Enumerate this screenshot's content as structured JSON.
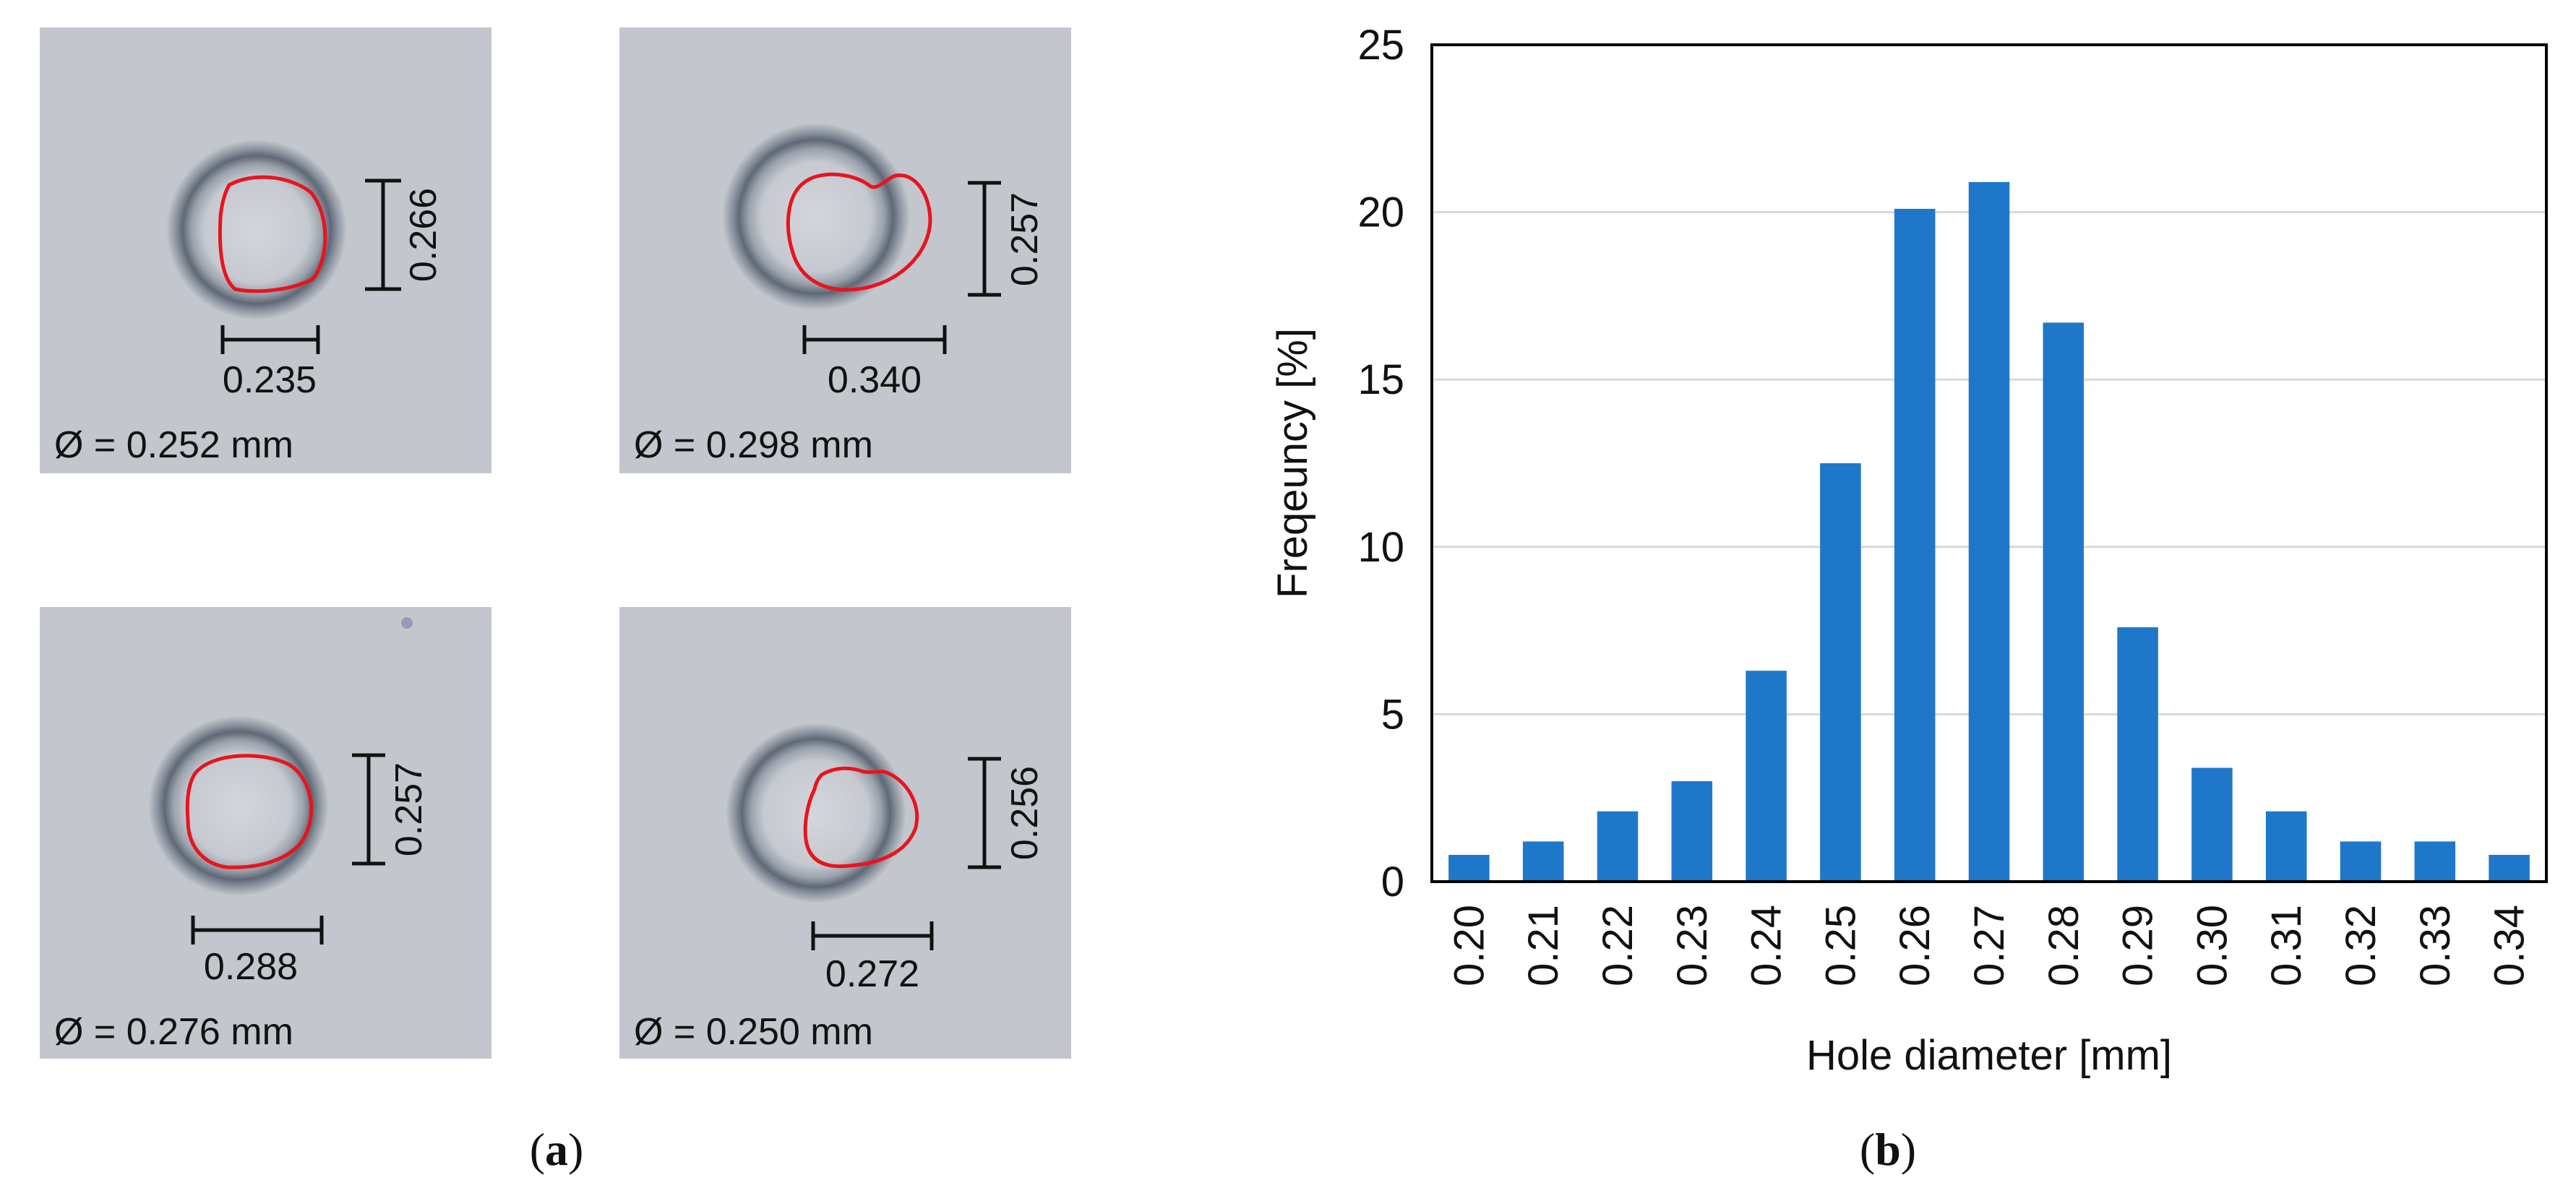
{
  "figure": {
    "panel_a_label": "(a)",
    "panel_b_label": "(b)",
    "panel_a_letter": "a",
    "panel_b_letter": "b"
  },
  "micrographs": [
    {
      "vertical_dim": "0.266",
      "horizontal_dim": "0.235",
      "diameter_text": "Ø = 0.252 mm"
    },
    {
      "vertical_dim": "0.257",
      "horizontal_dim": "0.340",
      "diameter_text": "Ø = 0.298 mm"
    },
    {
      "vertical_dim": "0.257",
      "horizontal_dim": "0.288",
      "diameter_text": "Ø = 0.276 mm"
    },
    {
      "vertical_dim": "0.256",
      "horizontal_dim": "0.272",
      "diameter_text": "Ø = 0.250 mm"
    }
  ],
  "colors": {
    "bar": "#1f77c9",
    "outline": "#e8141e",
    "photo_bg": "#c3c7cd",
    "grid": "#d9d9d9"
  },
  "chart_data": {
    "type": "bar",
    "categories": [
      "0.20",
      "0.21",
      "0.22",
      "0.23",
      "0.24",
      "0.25",
      "0.26",
      "0.27",
      "0.28",
      "0.29",
      "0.30",
      "0.31",
      "0.32",
      "0.33",
      "0.34"
    ],
    "values": [
      0.8,
      1.2,
      2.1,
      3.0,
      6.3,
      12.5,
      20.1,
      20.9,
      16.7,
      7.6,
      3.4,
      2.1,
      1.2,
      1.2,
      0.8
    ],
    "xlabel": "Hole diameter [mm]",
    "ylabel": "Freqeuncy [%]",
    "ylim": [
      0,
      25
    ],
    "yticks": [
      0,
      5,
      10,
      15,
      20,
      25
    ],
    "grid": true,
    "legend": "none"
  }
}
